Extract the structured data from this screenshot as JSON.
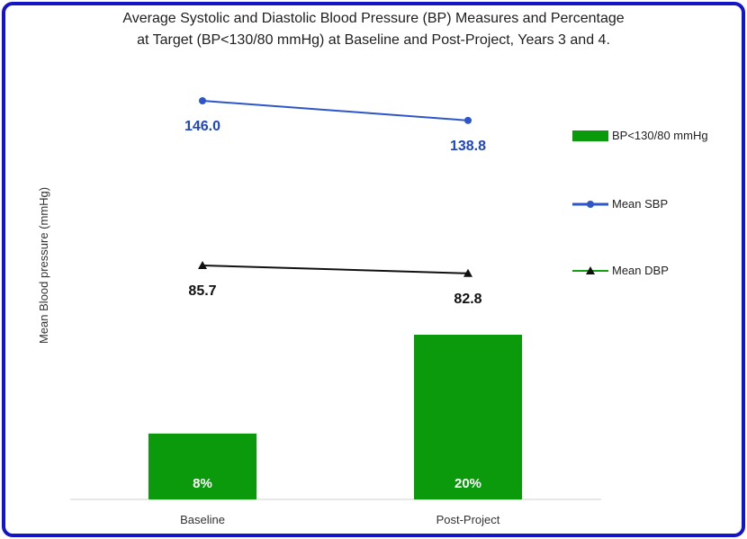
{
  "chart_data": {
    "type": "bar+line",
    "title_lines": [
      "Average Systolic and Diastolic Blood Pressure (BP) Measures and Percentage",
      "at Target (BP<130/80 mmHg) at Baseline and Post-Project, Years 3 and 4."
    ],
    "ylabel": "Mean Blood pressure (mmHg)",
    "categories": [
      "Baseline",
      "Post-Project"
    ],
    "bars": {
      "name": "BP<130/80 mmHg",
      "values": [
        8,
        20
      ],
      "labels": [
        "8%",
        "20%"
      ],
      "color": "#0b9a0b"
    },
    "lines": [
      {
        "name": "Mean SBP",
        "values": [
          146.0,
          138.8
        ],
        "labels": [
          "146.0",
          "138.8"
        ],
        "color": "#2e56c8",
        "label_color": "#1f45c0",
        "marker": "circle"
      },
      {
        "name": "Mean DBP",
        "values": [
          85.7,
          82.8
        ],
        "labels": [
          "85.7",
          "82.8"
        ],
        "color": "#111111",
        "label_color": "#111111",
        "marker": "triangle"
      }
    ],
    "legend_position": "right",
    "legend_items": [
      "BP<130/80 mmHg",
      "Mean SBP",
      "Mean DBP"
    ],
    "grid": false
  }
}
